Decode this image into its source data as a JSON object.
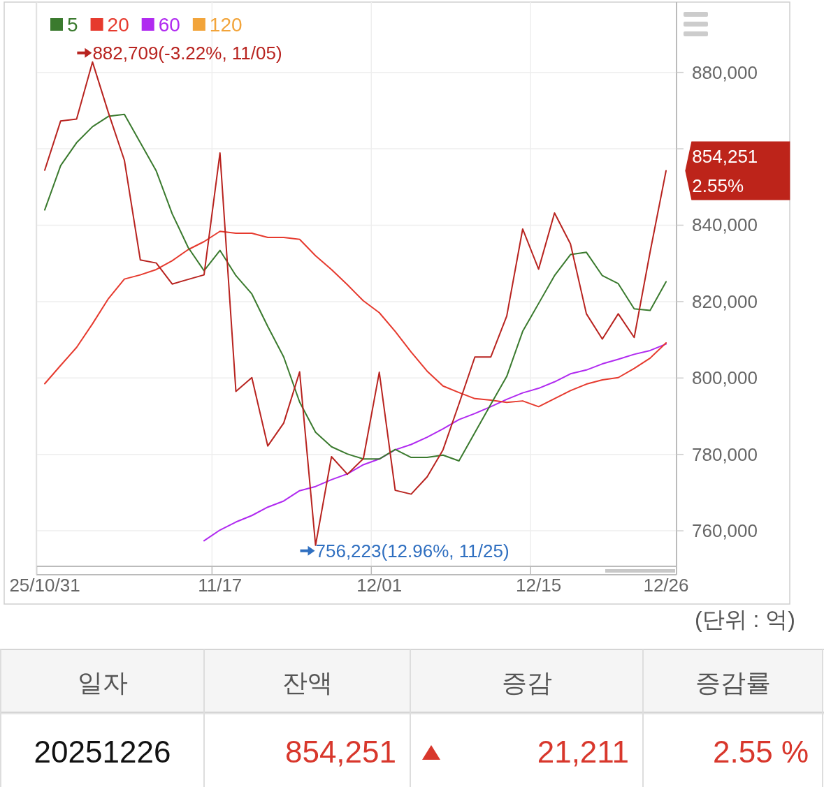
{
  "chart_data": [
    {
      "type": "line",
      "categories": [
        "25/10/31",
        null,
        null,
        null,
        null,
        null,
        null,
        null,
        null,
        null,
        null,
        "11/17",
        null,
        null,
        null,
        null,
        null,
        null,
        null,
        null,
        null,
        "12/01",
        null,
        null,
        null,
        null,
        null,
        null,
        null,
        null,
        null,
        "12/15",
        null,
        null,
        null,
        null,
        null,
        null,
        null,
        "12/26"
      ],
      "series": [
        {
          "color": "#b8231f",
          "values": [
            854400,
            867300,
            867800,
            882709,
            869400,
            857000,
            830900,
            830100,
            824600,
            825800,
            827000,
            858900,
            796500,
            800100,
            782200,
            788200,
            801600,
            756223,
            779400,
            774800,
            778900,
            801500,
            770600,
            769600,
            774100,
            781200,
            793200,
            805500,
            805500,
            816200,
            839000,
            828500,
            843200,
            835100,
            816800,
            810200,
            816800,
            810600,
            833000,
            854251
          ]
        },
        {
          "name": "5",
          "color": "#3a7a2e",
          "values": [
            844000,
            855600,
            861600,
            865800,
            868500,
            869000,
            861600,
            854200,
            843000,
            834200,
            828100,
            833400,
            826800,
            822000,
            813500,
            805500,
            793700,
            785800,
            782000,
            780100,
            778800,
            778800,
            781300,
            779200,
            779200,
            779800,
            778300,
            785700,
            793100,
            800400,
            812200,
            819500,
            826800,
            832300,
            832900,
            826800,
            824700,
            818100,
            817700,
            825200
          ]
        },
        {
          "name": "20",
          "color": "#e63a2e",
          "values": [
            798500,
            803300,
            808000,
            814200,
            820800,
            825900,
            827000,
            828400,
            830700,
            833600,
            835700,
            838400,
            837900,
            837900,
            836800,
            836800,
            836300,
            832000,
            828400,
            824400,
            820200,
            817100,
            812200,
            806800,
            801800,
            797900,
            796200,
            794600,
            794200,
            793600,
            794000,
            792500,
            794600,
            796700,
            798400,
            799500,
            800100,
            802500,
            805200,
            809200
          ]
        },
        {
          "name": "60",
          "color": "#b02af0",
          "values": [
            null,
            null,
            null,
            null,
            null,
            null,
            null,
            null,
            null,
            null,
            757400,
            760200,
            762300,
            764000,
            766200,
            767800,
            770500,
            771600,
            773400,
            774900,
            777300,
            778800,
            781200,
            782600,
            784500,
            786700,
            789100,
            790700,
            792500,
            794400,
            796100,
            797300,
            799000,
            801100,
            802100,
            803700,
            804900,
            806200,
            807200,
            808900
          ]
        },
        {
          "name": "120",
          "color": "#f2a43a",
          "values": [
            null,
            null,
            null,
            null,
            null,
            null,
            null,
            null,
            null,
            null,
            null,
            null,
            null,
            null,
            null,
            null,
            null,
            null,
            null,
            null,
            null,
            null,
            null,
            null,
            null,
            null,
            null,
            null,
            null,
            null,
            null,
            null,
            null,
            null,
            null,
            null,
            null,
            null,
            null,
            null
          ]
        }
      ],
      "ylim": [
        750700,
        898400
      ],
      "yticks": [
        {
          "value": 760000,
          "label": "760,000"
        },
        {
          "value": 780000,
          "label": "780,000"
        },
        {
          "value": 800000,
          "label": "800,000"
        },
        {
          "value": 820000,
          "label": "820,000"
        },
        {
          "value": 840000,
          "label": "840,000"
        },
        {
          "value": 860000,
          "label": null
        },
        {
          "value": 880000,
          "label": "880,000"
        }
      ],
      "grid": true,
      "legend": "top left",
      "annotations": [
        "882,709(-3.22%, 11/05)",
        "756,223(12.96%, 11/25)",
        {
          "text": "854,251",
          "x": "12/26",
          "y": 854251
        },
        {
          "text": "2.55%",
          "x": "12/26",
          "y": 854251
        },
        "(단위 : 억)"
      ]
    },
    {
      "type": "other",
      "annotations": [
        "일자",
        "잔액",
        "증감",
        "증감률",
        "20251226",
        "854,251",
        "21,211",
        "2.55 %"
      ]
    }
  ]
}
